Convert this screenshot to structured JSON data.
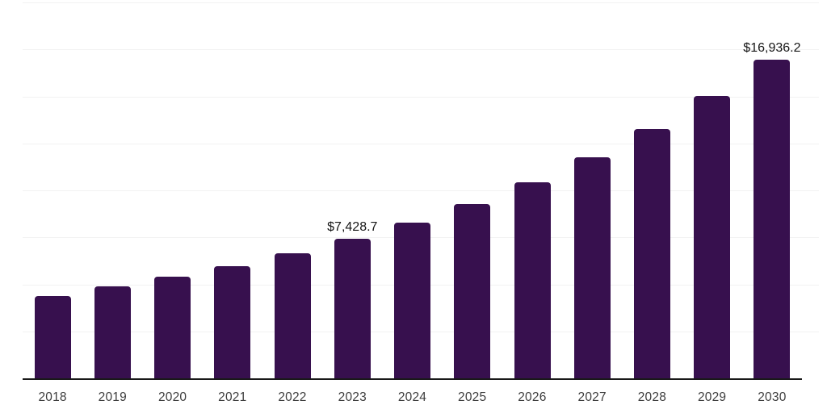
{
  "chart_data": {
    "type": "bar",
    "title": "",
    "xlabel": "",
    "ylabel": "",
    "categories": [
      "2018",
      "2019",
      "2020",
      "2021",
      "2022",
      "2023",
      "2024",
      "2025",
      "2026",
      "2027",
      "2028",
      "2029",
      "2030"
    ],
    "values": [
      4400,
      4900,
      5400,
      5980,
      6650,
      7428.7,
      8290,
      9290,
      10440,
      11770,
      13280,
      15040,
      16936.2
    ],
    "point_labels": [
      {
        "index": 5,
        "text": "$7,428.7"
      },
      {
        "index": 12,
        "text": "$16,936.2"
      }
    ],
    "ylim": [
      0,
      20000
    ],
    "gridline_step": 2500,
    "grid": true,
    "legend": false,
    "colors": {
      "bar": "#37104E",
      "axis_line": "#191919",
      "gridline": "#f2f2f2",
      "tick_label": "#3d3d3d",
      "point_label": "#161616",
      "background": "#ffffff"
    }
  }
}
